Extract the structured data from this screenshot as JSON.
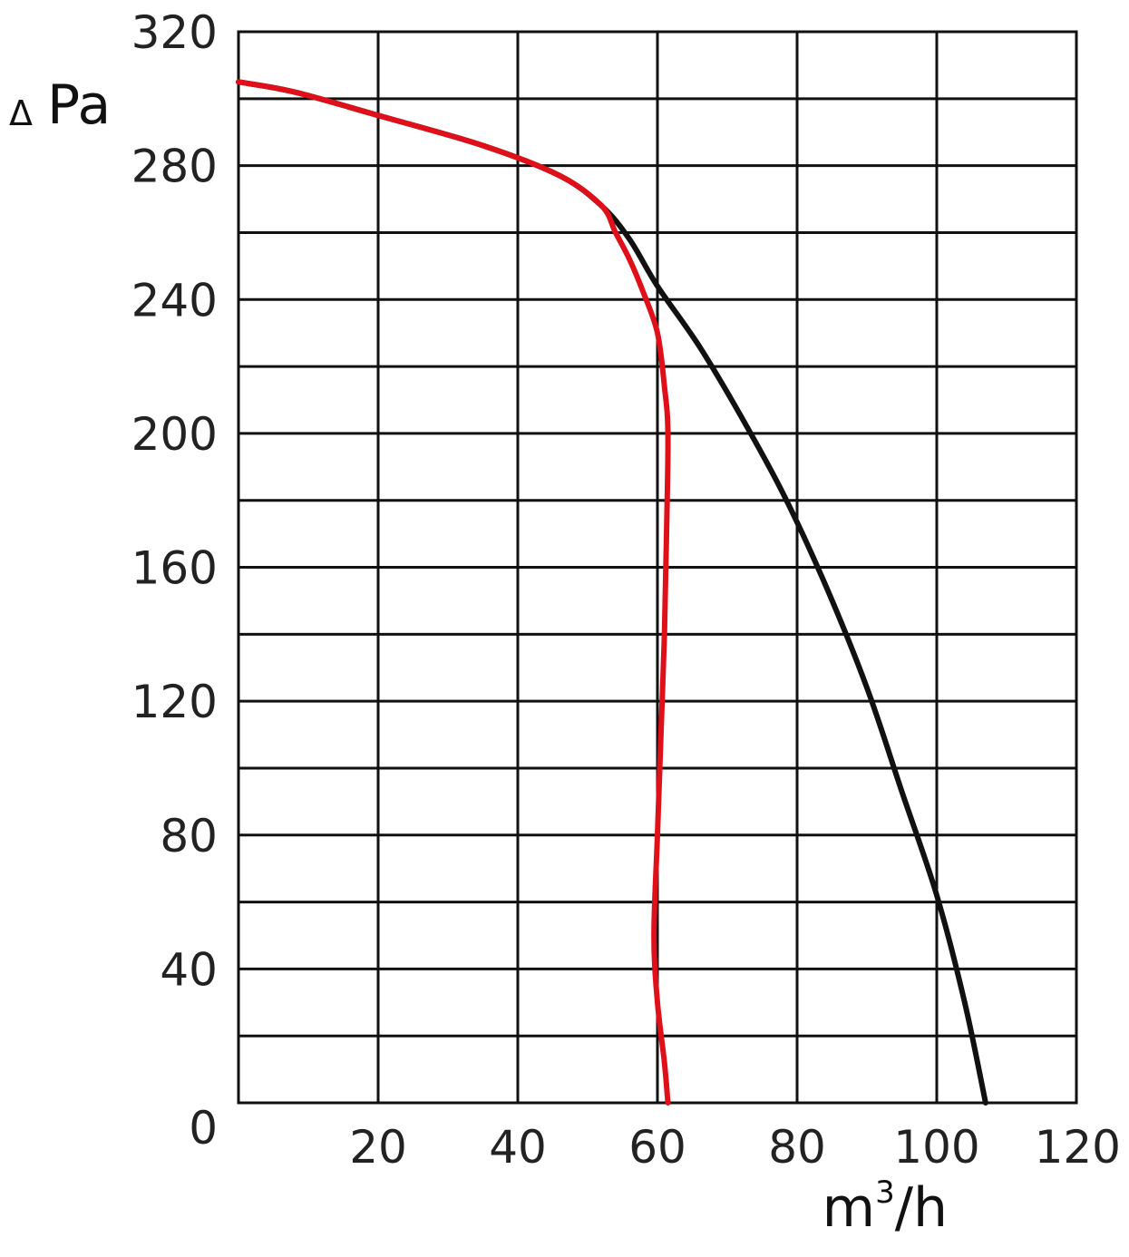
{
  "chart_data": {
    "type": "line",
    "title": "",
    "ylabel_symbol": "Δ",
    "ylabel": "Pa",
    "xlabel_base": "m",
    "xlabel_sup": "3",
    "xlabel_tail": "/h",
    "xlim": [
      0,
      120
    ],
    "ylim": [
      0,
      320
    ],
    "grid": true,
    "x_ticks": [
      20,
      40,
      60,
      80,
      100,
      120
    ],
    "y_ticks": [
      0,
      40,
      80,
      120,
      160,
      200,
      240,
      280,
      320
    ],
    "series": [
      {
        "color": "#111111",
        "points": [
          [
            0,
            305
          ],
          [
            8,
            302
          ],
          [
            20,
            295
          ],
          [
            35,
            286
          ],
          [
            46,
            277
          ],
          [
            52,
            268
          ],
          [
            56,
            258
          ],
          [
            60,
            244
          ],
          [
            66,
            226
          ],
          [
            72,
            205
          ],
          [
            78,
            182
          ],
          [
            84,
            155
          ],
          [
            90,
            124
          ],
          [
            95,
            93
          ],
          [
            100,
            62
          ],
          [
            104,
            30
          ],
          [
            107,
            0
          ]
        ]
      },
      {
        "color": "#e0101a",
        "points": [
          [
            0,
            305
          ],
          [
            8,
            302
          ],
          [
            20,
            295
          ],
          [
            35,
            286
          ],
          [
            46,
            277
          ],
          [
            52,
            268
          ],
          [
            54,
            260
          ],
          [
            56,
            252
          ],
          [
            58,
            242
          ],
          [
            60,
            230
          ],
          [
            61,
            214
          ],
          [
            61.5,
            200
          ],
          [
            61.3,
            170
          ],
          [
            61,
            140
          ],
          [
            60.5,
            110
          ],
          [
            60,
            80
          ],
          [
            59.5,
            50
          ],
          [
            60,
            30
          ],
          [
            61,
            12
          ],
          [
            61.5,
            0
          ]
        ]
      }
    ]
  }
}
